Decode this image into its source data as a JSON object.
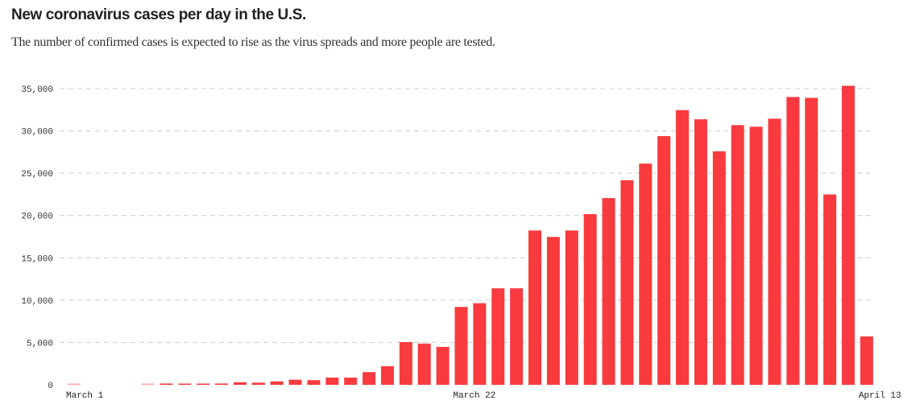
{
  "chart_data": {
    "type": "bar",
    "title": "New coronavirus cases per day in the U.S.",
    "subtitle": "The number of confirmed cases is expected to rise as the virus spreads and more people are tested.",
    "xlabel": "",
    "ylabel": "",
    "ylim": [
      0,
      35000
    ],
    "yticks": [
      0,
      5000,
      10000,
      15000,
      20000,
      25000,
      30000,
      35000
    ],
    "ytick_labels": [
      "0",
      "5,000",
      "10,000",
      "15,000",
      "20,000",
      "25,000",
      "30,000",
      "35,000"
    ],
    "grid": true,
    "bar_color": "#f93a3e",
    "xtick_labels": [
      {
        "index": 0,
        "label": "March 1"
      },
      {
        "index": 21,
        "label": "March 22"
      },
      {
        "index": 43,
        "label": "April 13"
      }
    ],
    "categories": [
      "Mar 1",
      "Mar 2",
      "Mar 3",
      "Mar 4",
      "Mar 5",
      "Mar 6",
      "Mar 7",
      "Mar 8",
      "Mar 9",
      "Mar 10",
      "Mar 11",
      "Mar 12",
      "Mar 13",
      "Mar 14",
      "Mar 15",
      "Mar 16",
      "Mar 17",
      "Mar 18",
      "Mar 19",
      "Mar 20",
      "Mar 21",
      "Mar 22",
      "Mar 23",
      "Mar 24",
      "Mar 25",
      "Mar 26",
      "Mar 27",
      "Mar 28",
      "Mar 29",
      "Mar 30",
      "Mar 31",
      "Apr 1",
      "Apr 2",
      "Apr 3",
      "Apr 4",
      "Apr 5",
      "Apr 6",
      "Apr 7",
      "Apr 8",
      "Apr 9",
      "Apr 10",
      "Apr 11",
      "Apr 12",
      "Apr 13"
    ],
    "values": [
      50,
      0,
      0,
      0,
      70,
      150,
      120,
      100,
      150,
      300,
      250,
      400,
      600,
      550,
      850,
      850,
      1500,
      2200,
      5050,
      4870,
      4480,
      9200,
      9640,
      11400,
      11400,
      18230,
      17470,
      18230,
      20160,
      22060,
      24170,
      26130,
      29380,
      32450,
      31370,
      27580,
      30680,
      30490,
      31440,
      34000,
      33900,
      22490,
      35330,
      5720
    ]
  }
}
